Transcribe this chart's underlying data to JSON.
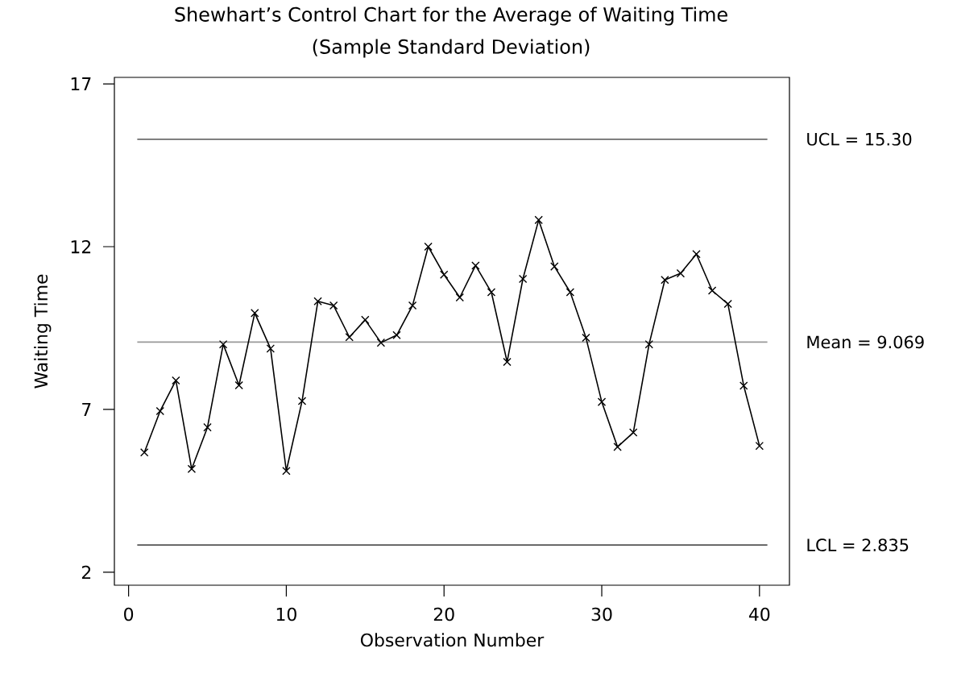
{
  "chart_data": {
    "type": "line",
    "title": "Shewhart’s Control Chart for the Average of Waiting Time",
    "subtitle": "(Sample Standard Deviation)",
    "xlabel": "Observation Number",
    "ylabel": "Waiting Time",
    "x": [
      1,
      2,
      3,
      4,
      5,
      6,
      7,
      8,
      9,
      10,
      11,
      12,
      13,
      14,
      15,
      16,
      17,
      18,
      19,
      20,
      21,
      22,
      23,
      24,
      25,
      26,
      27,
      28,
      29,
      30,
      31,
      32,
      33,
      34,
      35,
      36,
      37,
      38,
      39,
      40
    ],
    "series": [
      {
        "color": "#000000",
        "values": [
          5.68,
          6.95,
          7.89,
          5.17,
          6.45,
          9.0,
          7.74,
          9.96,
          8.87,
          5.11,
          7.26,
          10.32,
          10.19,
          9.22,
          9.75,
          9.05,
          9.28,
          10.19,
          12.0,
          11.14,
          10.44,
          11.42,
          10.6,
          8.46,
          11.01,
          12.82,
          11.39,
          10.6,
          9.2,
          7.23,
          5.85,
          6.29,
          9.0,
          10.98,
          11.18,
          11.77,
          10.65,
          10.24,
          7.73,
          5.88
        ]
      }
    ],
    "marker": "cross",
    "line_style": "solid",
    "grid": false,
    "xlim": [
      -0.9,
      41.9
    ],
    "ylim": [
      1.6,
      17.2
    ],
    "xticks": [
      0,
      10,
      20,
      30,
      40
    ],
    "yticks": [
      2,
      7,
      12,
      17
    ],
    "ref_lines": [
      {
        "axis": "y",
        "value": 15.3,
        "label": "UCL = 15.30",
        "color": "#555555"
      },
      {
        "axis": "y",
        "value": 9.069,
        "label": "Mean = 9.069",
        "color": "#999999"
      },
      {
        "axis": "y",
        "value": 2.835,
        "label": "LCL = 2.835",
        "color": "#555555"
      }
    ]
  }
}
